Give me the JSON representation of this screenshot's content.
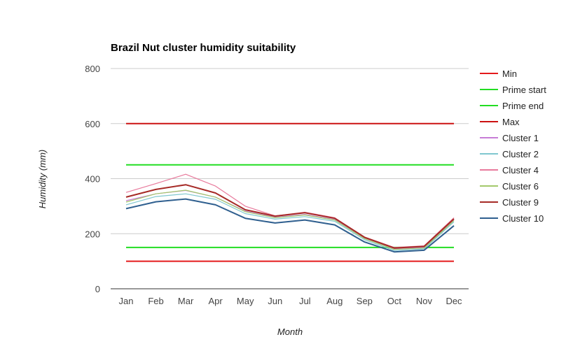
{
  "chart_data": {
    "type": "line",
    "title": "Brazil Nut cluster humidity suitability",
    "xlabel": "Month",
    "ylabel": "Humidity (mm)",
    "categories": [
      "Jan",
      "Feb",
      "Mar",
      "Apr",
      "May",
      "Jun",
      "Jul",
      "Aug",
      "Sep",
      "Oct",
      "Nov",
      "Dec"
    ],
    "ylim": [
      0,
      800
    ],
    "yticks": [
      "0",
      "200",
      "400",
      "600",
      "800"
    ],
    "grid": true,
    "legend_position": "right",
    "series": [
      {
        "name": "Min",
        "color": "#e41a1c",
        "values": [
          100,
          100,
          100,
          100,
          100,
          100,
          100,
          100,
          100,
          100,
          100,
          100
        ]
      },
      {
        "name": "Prime start",
        "color": "#22dd22",
        "values": [
          150,
          150,
          150,
          150,
          150,
          150,
          150,
          150,
          150,
          150,
          150,
          150
        ]
      },
      {
        "name": "Prime end",
        "color": "#22dd22",
        "values": [
          450,
          450,
          450,
          450,
          450,
          450,
          450,
          450,
          450,
          450,
          450,
          450
        ]
      },
      {
        "name": "Max",
        "color": "#cc1111",
        "values": [
          600,
          600,
          600,
          600,
          600,
          600,
          600,
          600,
          600,
          600,
          600,
          600
        ]
      },
      {
        "name": "Cluster 1",
        "color": "#c77cd6",
        "values": [
          320,
          345,
          357,
          333,
          282,
          260,
          270,
          252,
          183,
          145,
          150,
          250
        ]
      },
      {
        "name": "Cluster 2",
        "color": "#7fc7cf",
        "values": [
          305,
          335,
          345,
          325,
          273,
          253,
          262,
          245,
          178,
          139,
          145,
          243
        ]
      },
      {
        "name": "Cluster 4",
        "color": "#e87a9c",
        "values": [
          350,
          382,
          416,
          373,
          300,
          265,
          278,
          258,
          188,
          150,
          156,
          258
        ]
      },
      {
        "name": "Cluster 6",
        "color": "#a3c86a",
        "values": [
          315,
          345,
          358,
          333,
          280,
          258,
          268,
          250,
          182,
          143,
          148,
          248
        ]
      },
      {
        "name": "Cluster 9",
        "color": "#a62a26",
        "values": [
          333,
          361,
          378,
          348,
          287,
          264,
          276,
          256,
          187,
          148,
          154,
          254
        ]
      },
      {
        "name": "Cluster 10",
        "color": "#2f5f8f",
        "values": [
          291,
          316,
          326,
          305,
          256,
          239,
          250,
          232,
          170,
          134,
          140,
          229
        ]
      }
    ]
  }
}
